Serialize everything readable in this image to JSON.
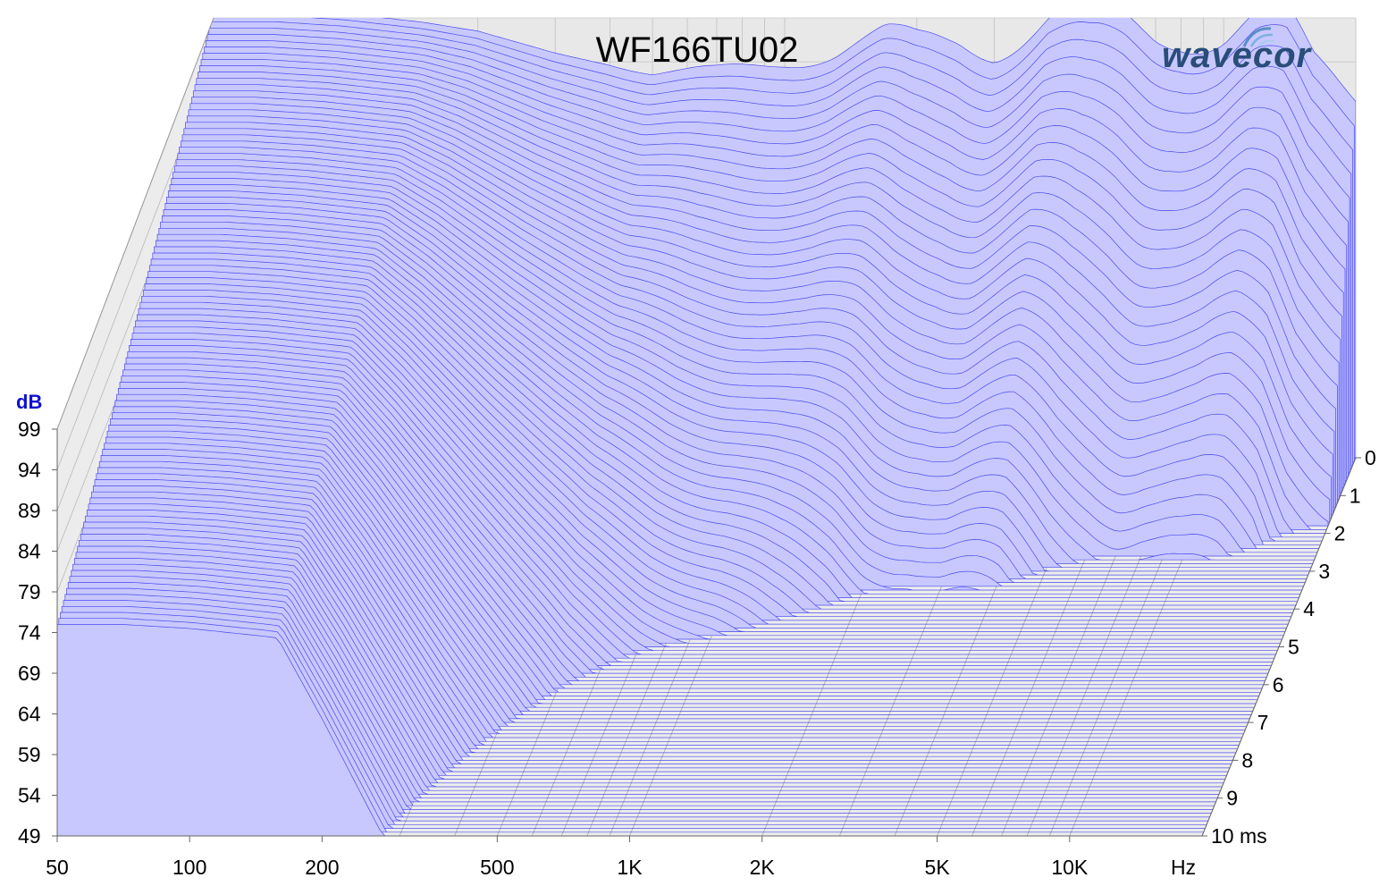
{
  "chart_data": {
    "type": "waterfall",
    "title": "WF166TU02",
    "brand": "wavecor",
    "y_axis": {
      "label": "dB",
      "ticks": [
        99,
        94,
        89,
        84,
        79,
        74,
        69,
        64,
        59,
        54,
        49
      ],
      "range": [
        49,
        99
      ]
    },
    "x_axis": {
      "scale": "log",
      "unit": "Hz",
      "range": [
        50,
        20000
      ],
      "tick_values": [
        50,
        100,
        200,
        500,
        1000,
        2000,
        5000,
        10000
      ],
      "tick_labels": [
        "50",
        "100",
        "200",
        "500",
        "1K",
        "2K",
        "5K",
        "10K"
      ],
      "minor_ticks": [
        60,
        70,
        80,
        90,
        300,
        400,
        600,
        700,
        800,
        900,
        3000,
        4000,
        6000,
        7000,
        8000,
        9000,
        20000
      ]
    },
    "z_axis": {
      "unit": "ms",
      "tick_values": [
        0,
        1,
        2,
        3,
        4,
        5,
        6,
        7,
        8,
        9,
        10
      ],
      "tick_labels": [
        "0",
        "1",
        "2",
        "3",
        "4",
        "5",
        "6",
        "7",
        "8",
        "9",
        "10 ms"
      ],
      "range": [
        0,
        10
      ]
    },
    "series_style": {
      "line_color": "#3333ee",
      "fill_color": "#c8c8ff"
    },
    "decay_time_ms_step": 0.1,
    "initial_response": {
      "freq_hz": [
        50,
        70,
        100,
        150,
        200,
        300,
        500,
        700,
        1000,
        1300,
        1700,
        2000,
        2500,
        3000,
        4000,
        5000,
        6000,
        7000,
        8000,
        10000,
        12000,
        14000,
        16000,
        20000
      ],
      "db": [
        100,
        100,
        99.5,
        98.5,
        97.5,
        95,
        92.5,
        93,
        94.5,
        95,
        96.5,
        96,
        97,
        96.5,
        98.5,
        97.5,
        98,
        97.5,
        98,
        97.5,
        98.5,
        97.5,
        93,
        91
      ]
    }
  }
}
